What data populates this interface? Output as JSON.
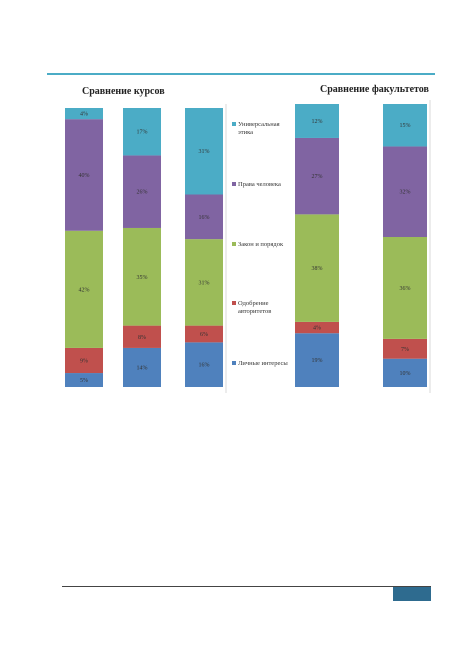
{
  "chart_data": [
    {
      "type": "bar",
      "stacked": true,
      "percent": true,
      "title": "Сравнение курсов",
      "ylim": [
        0,
        100
      ],
      "categories": [
        "",
        "",
        ""
      ],
      "series": [
        {
          "name": "Личные интересы",
          "values": [
            5,
            14,
            16
          ],
          "labels": [
            "5%",
            "14%",
            "16%"
          ]
        },
        {
          "name": "Одобрение авторитетов",
          "values": [
            9,
            8,
            6
          ],
          "labels": [
            "9%",
            "8%",
            "6%"
          ]
        },
        {
          "name": "Закон и порядок",
          "values": [
            42,
            35,
            31
          ],
          "labels": [
            "42%",
            "35%",
            "31%"
          ]
        },
        {
          "name": "Права человека",
          "values": [
            40,
            26,
            16
          ],
          "labels": [
            "40%",
            "26%",
            "16%"
          ]
        },
        {
          "name": "Универсальная этика",
          "values": [
            4,
            17,
            31
          ],
          "labels": [
            "4%",
            "17%",
            "31%"
          ]
        }
      ]
    },
    {
      "type": "bar",
      "stacked": true,
      "percent": true,
      "title": "Сравнение факультетов",
      "ylim": [
        0,
        100
      ],
      "categories": [
        "",
        ""
      ],
      "series": [
        {
          "name": "Личные интересы",
          "values": [
            19,
            10
          ],
          "labels": [
            "19%",
            "10%"
          ]
        },
        {
          "name": "Одобрение авторитетов",
          "values": [
            4,
            7
          ],
          "labels": [
            "4%",
            "7%"
          ]
        },
        {
          "name": "Закон и порядок",
          "values": [
            38,
            36
          ],
          "labels": [
            "38%",
            "36%"
          ]
        },
        {
          "name": "Права человека",
          "values": [
            27,
            32
          ],
          "labels": [
            "27%",
            "32%"
          ]
        },
        {
          "name": "Универсальная этика",
          "values": [
            12,
            15
          ],
          "labels": [
            "12%",
            "15%"
          ]
        }
      ]
    }
  ],
  "legend": {
    "items": [
      {
        "label": "Универсальная этика",
        "color": "#4bacc6"
      },
      {
        "label": "Права человека",
        "color": "#8064a2"
      },
      {
        "label": "Закон и порядок",
        "color": "#9bbb59"
      },
      {
        "label": "Одобрение авторитетов",
        "color": "#c0504d"
      },
      {
        "label": "Личные интересы",
        "color": "#4f81bd"
      }
    ]
  },
  "colors": {
    "accent_rule": "#4bacc6",
    "footer_box": "#2e6b8f"
  }
}
